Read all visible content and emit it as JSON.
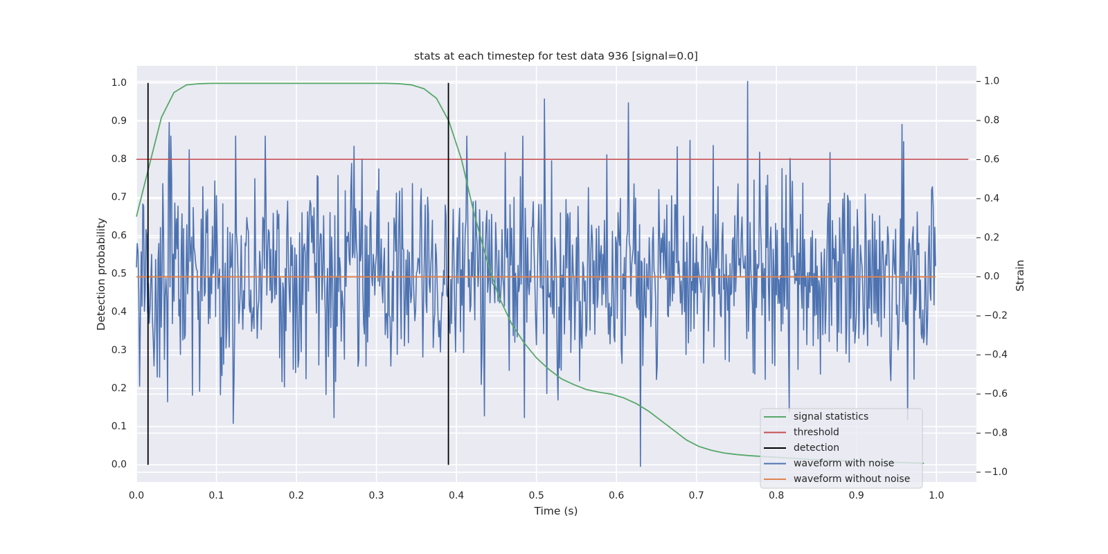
{
  "chart_data": {
    "type": "line",
    "title": "stats at each timestep for test data 936 [signal=0.0]",
    "xlabel": "Time (s)",
    "ylabel_left": "Detection probability",
    "ylabel_right": "Strain",
    "xlim": [
      0.0,
      1.05
    ],
    "ylim_left": [
      -0.045,
      1.045
    ],
    "ylim_right": [
      -1.05,
      1.08
    ],
    "x_ticks": [
      "0.0",
      "0.1",
      "0.2",
      "0.3",
      "0.4",
      "0.5",
      "0.6",
      "0.7",
      "0.8",
      "0.9",
      "1.0"
    ],
    "y_left_ticks": [
      "0.0",
      "0.1",
      "0.2",
      "0.3",
      "0.4",
      "0.5",
      "0.6",
      "0.7",
      "0.8",
      "0.9",
      "1.0"
    ],
    "y_right_ticks": [
      "−1.0",
      "−0.8",
      "−0.6",
      "−0.4",
      "−0.2",
      "0.0",
      "0.2",
      "0.4",
      "0.6",
      "0.8",
      "1.0"
    ],
    "grid": true,
    "legend_position": "lower-right",
    "series": [
      {
        "name": "signal statistics",
        "axis": "left",
        "color": "#55a868",
        "x": [
          0.0,
          0.0156,
          0.0313,
          0.0469,
          0.0625,
          0.0781,
          0.0938,
          0.1094,
          0.125,
          0.1406,
          0.1563,
          0.1719,
          0.1875,
          0.2031,
          0.2188,
          0.2344,
          0.25,
          0.2656,
          0.2813,
          0.2969,
          0.3125,
          0.3281,
          0.3438,
          0.3594,
          0.375,
          0.3906,
          0.4063,
          0.4219,
          0.4375,
          0.4531,
          0.4688,
          0.4844,
          0.5,
          0.5156,
          0.5313,
          0.5469,
          0.5625,
          0.5781,
          0.5938,
          0.6094,
          0.625,
          0.6406,
          0.6563,
          0.6719,
          0.6875,
          0.7031,
          0.7188,
          0.7344,
          0.75,
          0.7656,
          0.7813,
          0.7969,
          0.8125,
          0.8281,
          0.8438,
          0.8594,
          0.875,
          0.8906,
          0.9063,
          0.9219,
          0.9375,
          0.9531,
          0.9688,
          0.9844
        ],
        "values": [
          0.65,
          0.78,
          0.91,
          0.975,
          0.995,
          0.998,
          0.999,
          0.999,
          0.999,
          0.999,
          0.999,
          0.999,
          0.999,
          0.999,
          0.999,
          0.999,
          0.999,
          0.999,
          0.999,
          0.999,
          0.999,
          0.998,
          0.995,
          0.985,
          0.96,
          0.9,
          0.8,
          0.66,
          0.54,
          0.44,
          0.37,
          0.32,
          0.28,
          0.25,
          0.225,
          0.21,
          0.197,
          0.19,
          0.185,
          0.175,
          0.16,
          0.14,
          0.115,
          0.09,
          0.065,
          0.048,
          0.038,
          0.031,
          0.027,
          0.024,
          0.022,
          0.02,
          0.018,
          0.016,
          0.014,
          0.012,
          0.011,
          0.01,
          0.009,
          0.008,
          0.007,
          0.006,
          0.005,
          0.004
        ]
      },
      {
        "name": "threshold",
        "axis": "left",
        "color": "#c44e52",
        "x": [
          0.0,
          1.04
        ],
        "values": [
          0.8,
          0.8
        ]
      },
      {
        "name": "detection",
        "axis": "left",
        "color": "#000000",
        "vlines": [
          0.0145,
          0.39
        ],
        "range": [
          0.0,
          1.0
        ]
      },
      {
        "name": "waveform with noise",
        "axis": "right",
        "color": "#4c72b0",
        "x_start": 0.0,
        "x_end": 0.999,
        "num_samples": 1000,
        "seed": 936,
        "amplitude_scale": 0.25,
        "max_abs": 1.0,
        "extremes": [
          {
            "x": 0.041,
            "value": 0.79
          },
          {
            "x": 0.066,
            "value": 0.65
          },
          {
            "x": 0.121,
            "value": -0.75
          },
          {
            "x": 0.124,
            "value": 0.72
          },
          {
            "x": 0.51,
            "value": 0.91
          },
          {
            "x": 0.615,
            "value": 0.89
          },
          {
            "x": 0.63,
            "value": -0.97
          },
          {
            "x": 0.764,
            "value": 1.0
          },
          {
            "x": 0.816,
            "value": -0.69
          },
          {
            "x": 0.957,
            "value": 0.78
          },
          {
            "x": 0.964,
            "value": -0.73
          }
        ]
      },
      {
        "name": "waveform without noise",
        "axis": "right",
        "color": "#dd8452",
        "x": [
          0.0,
          0.999
        ],
        "values": [
          0.0,
          0.0
        ]
      }
    ]
  }
}
